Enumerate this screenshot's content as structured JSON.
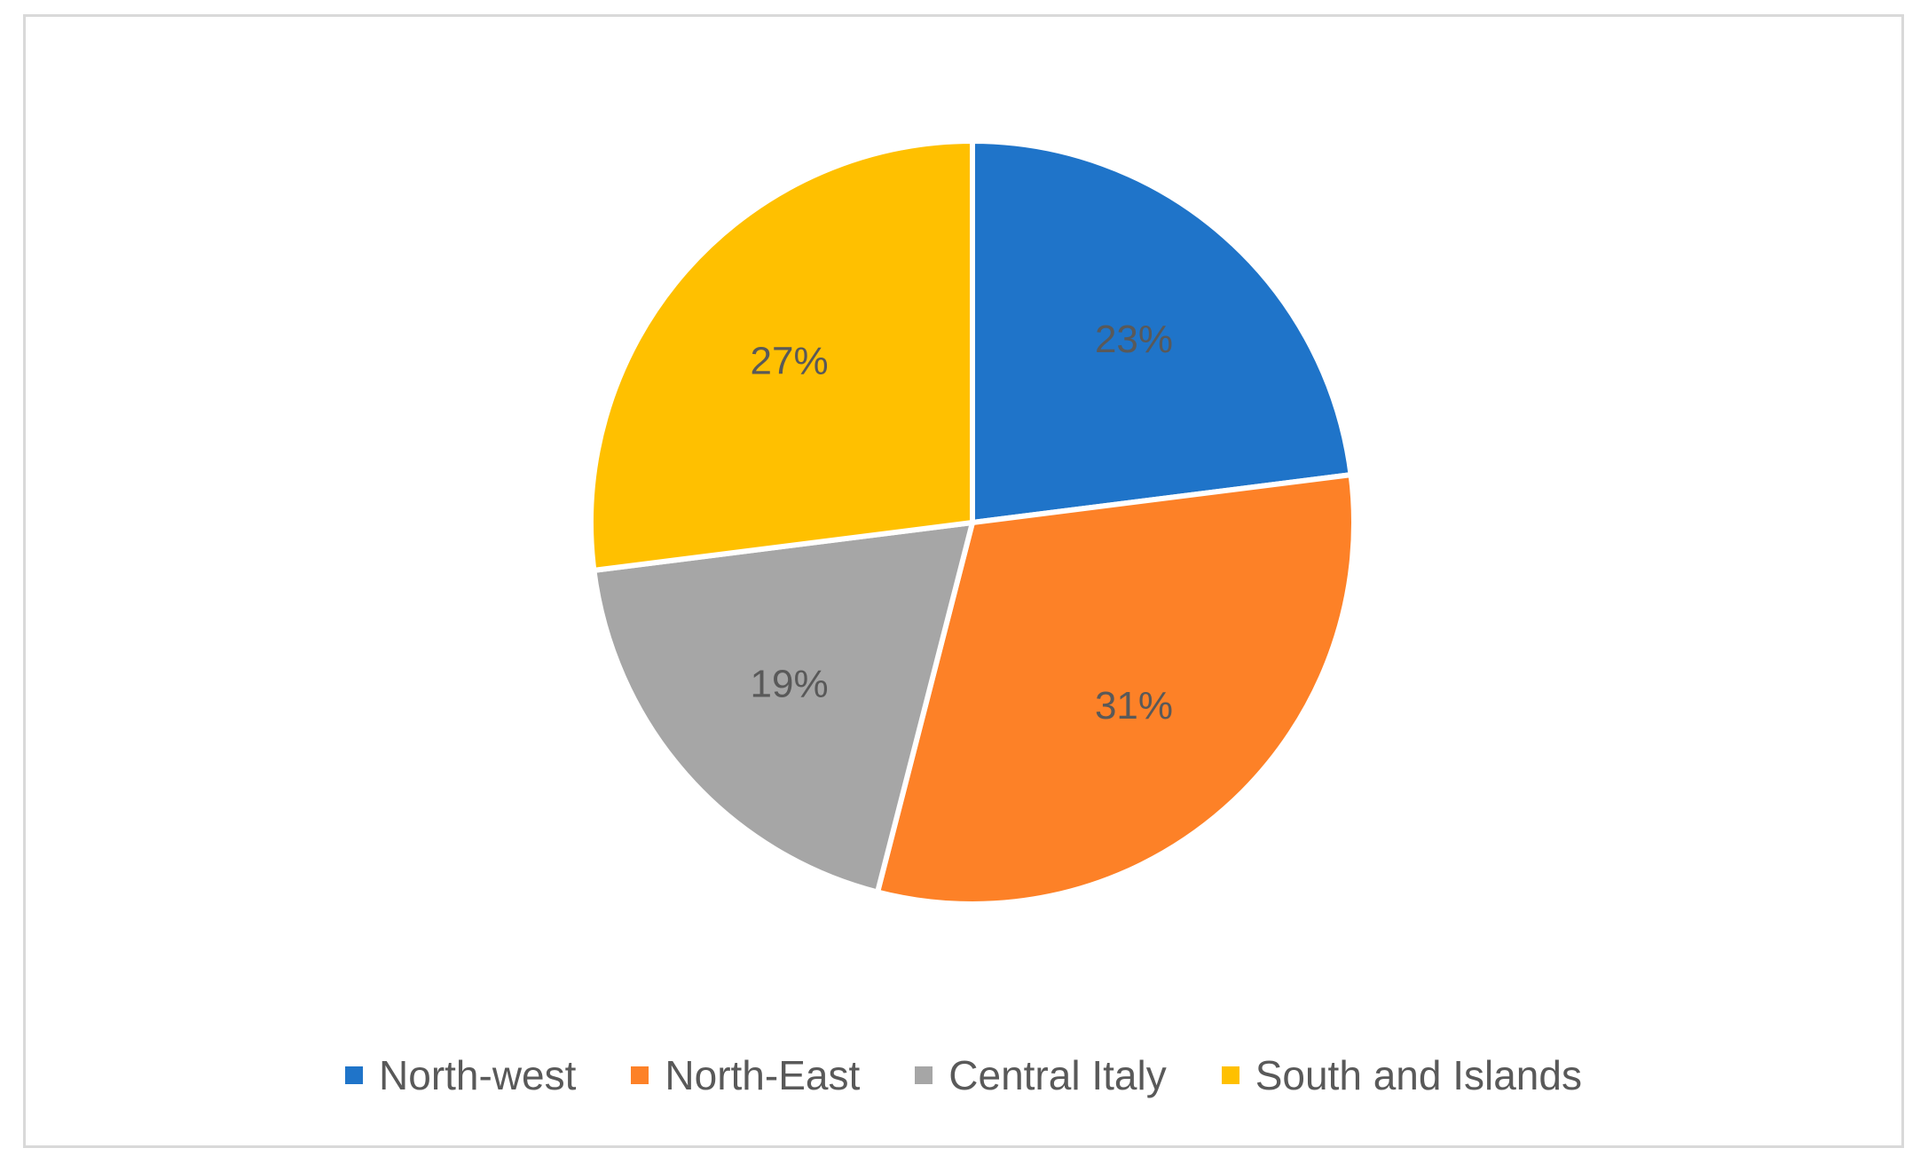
{
  "chart_data": {
    "type": "pie",
    "title": "",
    "categories": [
      "North-west",
      "North-East",
      "Central Italy",
      "South and Islands"
    ],
    "values": [
      23,
      31,
      19,
      27
    ],
    "value_labels": [
      "23%",
      "31%",
      "19%",
      "27%"
    ],
    "colors": [
      "#1f74c9",
      "#fd8127",
      "#a6a6a6",
      "#ffc000"
    ],
    "start_angle_deg": 0,
    "direction": "clockwise",
    "legend_position": "bottom"
  }
}
